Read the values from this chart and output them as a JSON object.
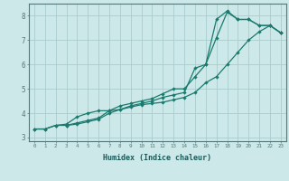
{
  "title": "",
  "xlabel": "Humidex (Indice chaleur)",
  "ylabel": "",
  "bg_color": "#cce8e8",
  "grid_color": "#aacccc",
  "line_color": "#1a7a6e",
  "xlim": [
    -0.5,
    23.5
  ],
  "ylim": [
    2.85,
    8.5
  ],
  "xticks": [
    0,
    1,
    2,
    3,
    4,
    5,
    6,
    7,
    8,
    9,
    10,
    11,
    12,
    13,
    14,
    15,
    16,
    17,
    18,
    19,
    20,
    21,
    22,
    23
  ],
  "yticks": [
    3,
    4,
    5,
    6,
    7,
    8
  ],
  "line1_x": [
    0,
    1,
    2,
    3,
    4,
    5,
    6,
    7,
    8,
    9,
    10,
    11,
    12,
    13,
    14,
    15,
    16,
    17,
    18,
    19,
    20,
    21,
    22,
    23
  ],
  "line1_y": [
    3.35,
    3.35,
    3.5,
    3.5,
    3.6,
    3.7,
    3.8,
    4.1,
    4.3,
    4.4,
    4.5,
    4.6,
    4.8,
    5.0,
    5.0,
    5.5,
    6.0,
    7.1,
    8.15,
    7.85,
    7.85,
    7.6,
    7.6,
    7.3
  ],
  "line2_x": [
    0,
    1,
    2,
    3,
    4,
    5,
    6,
    7,
    8,
    9,
    10,
    11,
    12,
    13,
    14,
    15,
    16,
    17,
    18,
    19,
    20,
    21,
    22,
    23
  ],
  "line2_y": [
    3.35,
    3.35,
    3.5,
    3.55,
    3.85,
    4.0,
    4.1,
    4.1,
    4.15,
    4.25,
    4.35,
    4.4,
    4.45,
    4.55,
    4.65,
    4.85,
    5.25,
    5.5,
    6.0,
    6.5,
    7.0,
    7.35,
    7.6,
    7.3
  ],
  "line3_x": [
    3,
    4,
    5,
    6,
    7,
    8,
    9,
    10,
    11,
    12,
    13,
    14,
    15,
    16,
    17,
    18,
    19,
    20,
    21,
    22,
    23
  ],
  "line3_y": [
    3.5,
    3.55,
    3.65,
    3.75,
    4.0,
    4.15,
    4.3,
    4.4,
    4.5,
    4.65,
    4.75,
    4.85,
    5.85,
    6.0,
    7.85,
    8.2,
    7.85,
    7.85,
    7.6,
    7.6,
    7.3
  ]
}
